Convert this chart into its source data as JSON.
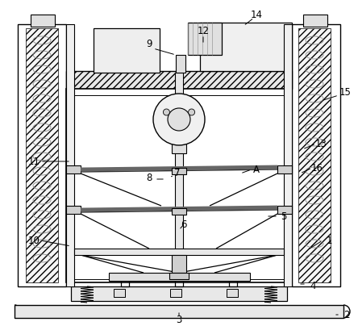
{
  "bg_color": "#ffffff",
  "figsize": [
    4.44,
    4.04
  ],
  "dpi": 100,
  "label_configs": [
    [
      "1",
      408,
      298,
      400,
      298,
      381,
      310
    ],
    [
      "2",
      430,
      390,
      422,
      390,
      414,
      390
    ],
    [
      "3",
      222,
      396,
      222,
      394,
      222,
      385
    ],
    [
      "4",
      388,
      355,
      380,
      352,
      370,
      352
    ],
    [
      "5",
      352,
      268,
      345,
      268,
      330,
      268
    ],
    [
      "6",
      228,
      278,
      228,
      278,
      222,
      285
    ],
    [
      "7",
      220,
      215,
      216,
      217,
      210,
      220
    ],
    [
      "8",
      185,
      220,
      192,
      222,
      205,
      222
    ],
    [
      "9",
      185,
      55,
      190,
      60,
      218,
      68
    ],
    [
      "10",
      42,
      298,
      50,
      298,
      88,
      305
    ],
    [
      "11",
      42,
      200,
      50,
      200,
      88,
      200
    ],
    [
      "12",
      252,
      38,
      252,
      43,
      252,
      55
    ],
    [
      "13",
      398,
      178,
      392,
      178,
      375,
      185
    ],
    [
      "14",
      318,
      18,
      315,
      22,
      302,
      32
    ],
    [
      "15",
      428,
      115,
      420,
      118,
      398,
      125
    ],
    [
      "16",
      393,
      208,
      387,
      208,
      372,
      215
    ],
    [
      "A",
      318,
      210,
      312,
      210,
      298,
      215
    ]
  ]
}
